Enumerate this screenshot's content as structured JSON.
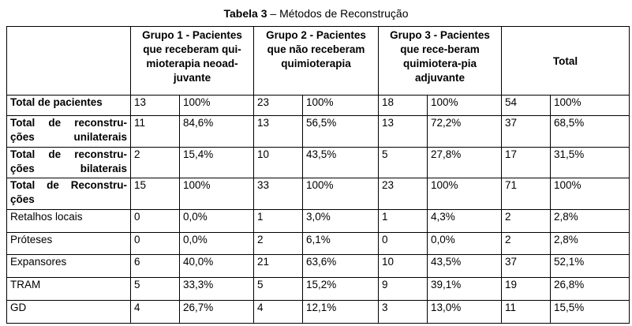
{
  "title": {
    "bold": "Tabela 3",
    "rest": " – Métodos de Reconstrução"
  },
  "headers": {
    "g1": "Grupo 1 - Pacientes que receberam qui-mioterapia neoad-juvante",
    "g2": "Grupo 2 - Pacientes que não receberam quimioterapia",
    "g3": "Grupo 3 - Pacientes que rece-beram quimiotera-pia adjuvante",
    "total": "Total"
  },
  "rows": [
    {
      "label": "Total de pacientes",
      "bold": true,
      "v": [
        "13",
        "100%",
        "23",
        "100%",
        "18",
        "100%",
        "54",
        "100%"
      ]
    },
    {
      "label": "Total de reconstru-ções unilaterais",
      "bold": true,
      "v": [
        "11",
        "84,6%",
        "13",
        "56,5%",
        "13",
        "72,2%",
        "37",
        "68,5%"
      ]
    },
    {
      "label": "Total de reconstru-ções bilaterais",
      "bold": true,
      "v": [
        "2",
        "15,4%",
        "10",
        "43,5%",
        "5",
        "27,8%",
        "17",
        "31,5%"
      ]
    },
    {
      "label": "Total de Reconstru-ções",
      "bold": true,
      "v": [
        "15",
        "100%",
        "33",
        "100%",
        "23",
        "100%",
        "71",
        "100%"
      ]
    },
    {
      "label": "Retalhos locais",
      "bold": false,
      "v": [
        "0",
        "0,0%",
        "1",
        "3,0%",
        "1",
        "4,3%",
        "2",
        "2,8%"
      ]
    },
    {
      "label": "Próteses",
      "bold": false,
      "v": [
        "0",
        "0,0%",
        "2",
        "6,1%",
        "0",
        "0,0%",
        "2",
        "2,8%"
      ]
    },
    {
      "label": "Expansores",
      "bold": false,
      "v": [
        "6",
        "40,0%",
        "21",
        "63,6%",
        "10",
        "43,5%",
        "37",
        "52,1%"
      ]
    },
    {
      "label": "TRAM",
      "bold": false,
      "v": [
        "5",
        "33,3%",
        "5",
        "15,2%",
        "9",
        "39,1%",
        "19",
        "26,8%"
      ]
    },
    {
      "label": "GD",
      "bold": false,
      "v": [
        "4",
        "26,7%",
        "4",
        "12,1%",
        "3",
        "13,0%",
        "11",
        "15,5%"
      ]
    }
  ]
}
